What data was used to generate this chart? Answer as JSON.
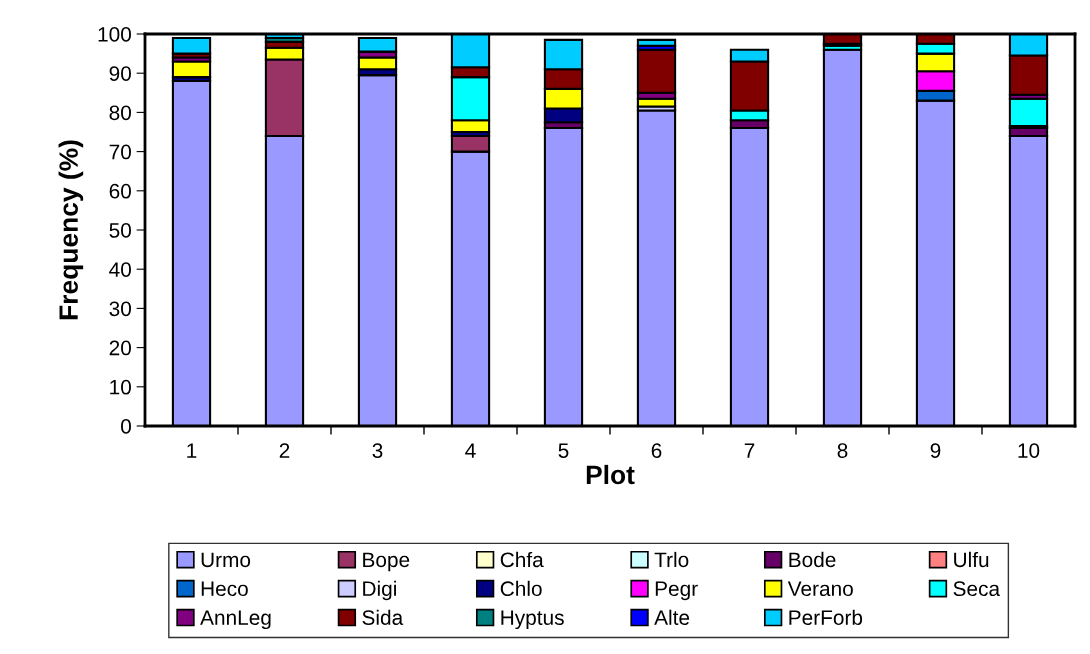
{
  "chart_data": {
    "type": "bar",
    "stacked": true,
    "xlabel": "Plot",
    "ylabel": "Frequency (%)",
    "categories": [
      "1",
      "2",
      "3",
      "4",
      "5",
      "6",
      "7",
      "8",
      "9",
      "10"
    ],
    "ylim": [
      0,
      100
    ],
    "yticks": [
      0,
      10,
      20,
      30,
      40,
      50,
      60,
      70,
      80,
      90,
      100
    ],
    "grid": false,
    "legend": "bottom",
    "series": [
      {
        "name": "Urmo",
        "color": "#9999ff",
        "values": [
          88,
          74,
          89.5,
          70,
          76,
          80.5,
          76,
          96,
          83,
          74
        ]
      },
      {
        "name": "Bope",
        "color": "#993366",
        "values": [
          0,
          19.5,
          0,
          4,
          0,
          0,
          0,
          0,
          0,
          0
        ]
      },
      {
        "name": "Chfa",
        "color": "#ffffcc",
        "values": [
          0,
          0,
          0,
          0,
          0,
          0,
          0,
          0,
          0,
          0
        ]
      },
      {
        "name": "Trlo",
        "color": "#ccffff",
        "values": [
          0,
          0,
          0,
          0,
          0,
          0,
          0,
          0,
          0,
          0
        ]
      },
      {
        "name": "Bode",
        "color": "#660066",
        "values": [
          0,
          0,
          0,
          0,
          1.5,
          0,
          2,
          0,
          0,
          2
        ]
      },
      {
        "name": "Ulfu",
        "color": "#ff8080",
        "values": [
          0,
          0,
          0,
          0,
          0,
          0,
          0,
          0,
          0,
          0
        ]
      },
      {
        "name": "Heco",
        "color": "#0066cc",
        "values": [
          0,
          0,
          0,
          0,
          0,
          0,
          0,
          0,
          2.5,
          0
        ]
      },
      {
        "name": "Digi",
        "color": "#ccccff",
        "values": [
          0,
          0,
          0,
          0,
          0,
          1,
          0,
          0,
          0,
          0
        ]
      },
      {
        "name": "Chlo",
        "color": "#000080",
        "values": [
          1,
          0,
          1.5,
          1,
          3.5,
          0,
          0,
          0,
          0,
          0
        ]
      },
      {
        "name": "Pegr",
        "color": "#ff00ff",
        "values": [
          0,
          0,
          0,
          0,
          0,
          0,
          0,
          0,
          5,
          0
        ]
      },
      {
        "name": "Verano",
        "color": "#ffff00",
        "values": [
          4,
          3,
          3,
          3,
          5,
          2,
          0,
          0,
          4.5,
          0.5
        ]
      },
      {
        "name": "Seca",
        "color": "#00ffff",
        "values": [
          0,
          0,
          0,
          11,
          0,
          0,
          2.5,
          1,
          2.5,
          7
        ]
      },
      {
        "name": "AnnLeg",
        "color": "#800080",
        "values": [
          1,
          0,
          1.5,
          0,
          0,
          1.5,
          0,
          0.5,
          0,
          1
        ]
      },
      {
        "name": "Sida",
        "color": "#800000",
        "values": [
          1,
          1.5,
          0,
          2.5,
          5,
          11,
          12.5,
          2.5,
          2.5,
          10
        ]
      },
      {
        "name": "Hyptus",
        "color": "#008080",
        "values": [
          0,
          1,
          0,
          0,
          0,
          0,
          0,
          0,
          0,
          0
        ]
      },
      {
        "name": "Alte",
        "color": "#0000ff",
        "values": [
          0,
          0,
          0,
          0,
          0,
          1,
          0,
          0,
          0,
          0
        ]
      },
      {
        "name": "PerForb",
        "color": "#00ccff",
        "values": [
          4,
          1,
          3.5,
          8.5,
          7.5,
          1.5,
          3,
          0,
          0,
          5.5
        ]
      }
    ]
  }
}
